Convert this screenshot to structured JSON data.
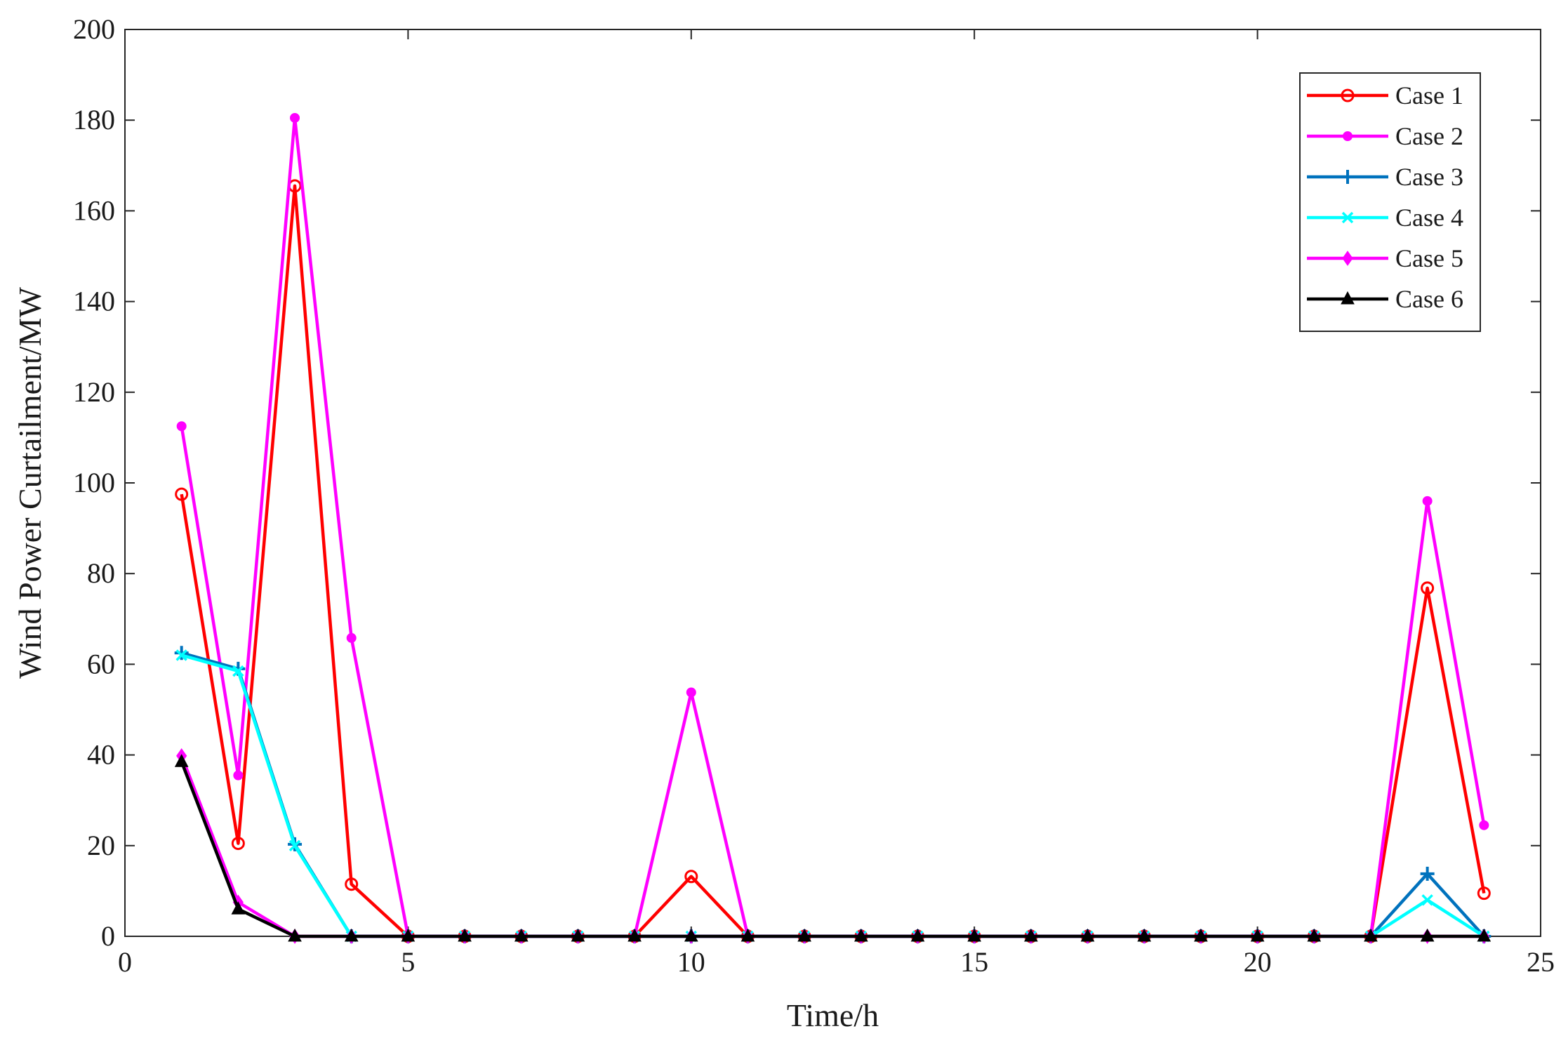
{
  "chart_data": {
    "type": "line",
    "title": "",
    "xlabel": "Time/h",
    "ylabel": "Wind Power Curtailment/MW",
    "xlim": [
      0,
      25
    ],
    "ylim": [
      0,
      200
    ],
    "xticks": [
      0,
      5,
      10,
      15,
      20,
      25
    ],
    "yticks": [
      0,
      20,
      40,
      60,
      80,
      100,
      120,
      140,
      160,
      180,
      200
    ],
    "grid": false,
    "legend_position": "top-right",
    "x": [
      1,
      2,
      3,
      4,
      5,
      6,
      7,
      8,
      9,
      10,
      11,
      12,
      13,
      14,
      15,
      16,
      17,
      18,
      19,
      20,
      21,
      22,
      23,
      24
    ],
    "series": [
      {
        "name": "Case 1",
        "color": "#ff0000",
        "marker": "circle",
        "values": [
          97.5,
          20.5,
          165.5,
          11.5,
          0,
          0,
          0,
          0,
          0,
          13.2,
          0,
          0,
          0,
          0,
          0,
          0,
          0,
          0,
          0,
          0,
          0,
          0,
          76.8,
          9.5
        ]
      },
      {
        "name": "Case 2",
        "color": "#ff00ff",
        "marker": "dot",
        "values": [
          112.5,
          35.5,
          180.5,
          65.8,
          0,
          0,
          0,
          0,
          0,
          53.8,
          0,
          0,
          0,
          0,
          0,
          0,
          0,
          0,
          0,
          0,
          0,
          0,
          96.0,
          24.5
        ]
      },
      {
        "name": "Case 3",
        "color": "#0072bd",
        "marker": "plus",
        "values": [
          62.5,
          59.0,
          20.3,
          0,
          0,
          0,
          0,
          0,
          0,
          0,
          0,
          0,
          0,
          0,
          0,
          0,
          0,
          0,
          0,
          0,
          0,
          0,
          13.8,
          0
        ]
      },
      {
        "name": "Case 4",
        "color": "#00ffff",
        "marker": "x",
        "values": [
          62.0,
          58.5,
          20.0,
          0,
          0,
          0,
          0,
          0,
          0,
          0,
          0,
          0,
          0,
          0,
          0,
          0,
          0,
          0,
          0,
          0,
          0,
          0,
          8.0,
          0
        ]
      },
      {
        "name": "Case 5",
        "color": "#ff00ff",
        "marker": "diamond",
        "values": [
          39.8,
          7.5,
          0,
          0,
          0,
          0,
          0,
          0,
          0,
          0,
          0,
          0,
          0,
          0,
          0,
          0,
          0,
          0,
          0,
          0,
          0,
          0,
          0,
          0
        ]
      },
      {
        "name": "Case 6",
        "color": "#000000",
        "marker": "triangle",
        "values": [
          38.5,
          6.0,
          0,
          0,
          0,
          0,
          0,
          0,
          0,
          0,
          0,
          0,
          0,
          0,
          0,
          0,
          0,
          0,
          0,
          0,
          0,
          0,
          0,
          0
        ]
      }
    ]
  }
}
